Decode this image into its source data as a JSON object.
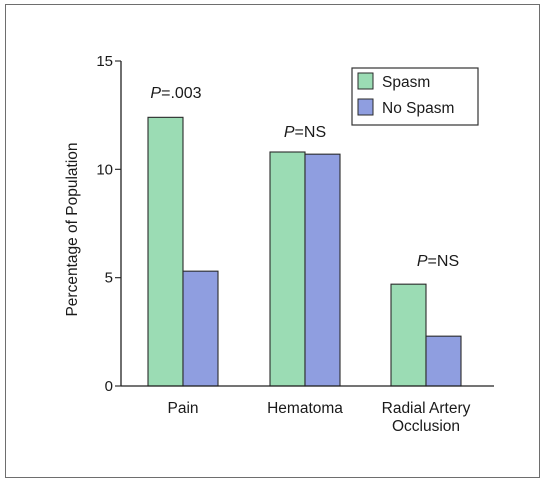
{
  "chart_data": {
    "type": "bar",
    "categories": [
      [
        "Pain"
      ],
      [
        "Hematoma"
      ],
      [
        "Radial Artery",
        "Occlusion"
      ]
    ],
    "series": [
      {
        "name": "Spasm",
        "values": [
          12.4,
          10.8,
          4.7
        ],
        "color": "#9bdcb4"
      },
      {
        "name": "No Spasm",
        "values": [
          5.3,
          10.7,
          2.3
        ],
        "color": "#8f9ee0"
      }
    ],
    "ylabel": "Percentage of Population",
    "ylim": [
      0,
      15
    ],
    "yticks": [
      0,
      5,
      10,
      15
    ],
    "annotations": [
      {
        "prefix": "P",
        "text": "=.003",
        "category_index": 0
      },
      {
        "prefix": "P",
        "text": "=NS",
        "category_index": 1
      },
      {
        "prefix": "P",
        "text": "=NS",
        "category_index": 2
      }
    ],
    "legend_position": "top-right",
    "grid": false
  }
}
